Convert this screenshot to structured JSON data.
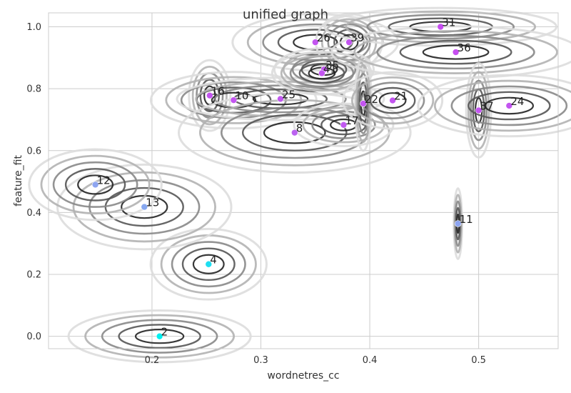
{
  "chart_data": {
    "type": "scatter",
    "title": "unified graph",
    "xlabel": "wordnetres_cc",
    "ylabel": "feature_fit",
    "xlim": [
      0.105,
      0.573
    ],
    "ylim": [
      -0.04,
      1.045
    ],
    "xticks": [
      "0.2",
      "0.3",
      "0.4",
      "0.5"
    ],
    "xtick_values": [
      0.2,
      0.3,
      0.4,
      0.5
    ],
    "yticks": [
      "0.0",
      "0.2",
      "0.4",
      "0.6",
      "0.8",
      "1.0"
    ],
    "ytick_values": [
      0.0,
      0.2,
      0.4,
      0.6,
      0.8,
      1.0
    ],
    "grid": true,
    "colormap": [
      "#00f0f0",
      "#5fb8f2",
      "#9aa0f0",
      "#b078f0",
      "#cc44f0"
    ],
    "contour_colors": [
      "#222222",
      "#555555",
      "#888888",
      "#b3b3b3",
      "#dddddd"
    ],
    "points": [
      {
        "label": "2",
        "x": 0.207,
        "y": 0.0,
        "v": 0.0,
        "sx": 0.022,
        "sy": 0.022
      },
      {
        "label": "4",
        "x": 0.252,
        "y": 0.233,
        "v": 0.08,
        "sx": 0.014,
        "sy": 0.03
      },
      {
        "label": "13",
        "x": 0.193,
        "y": 0.418,
        "v": 0.42,
        "sx": 0.021,
        "sy": 0.036
      },
      {
        "label": "12",
        "x": 0.148,
        "y": 0.49,
        "v": 0.45,
        "sx": 0.016,
        "sy": 0.03
      },
      {
        "label": "11",
        "x": 0.481,
        "y": 0.364,
        "v": 0.45,
        "sx": 0.001,
        "sy": 0.03
      },
      {
        "label": "16",
        "x": 0.253,
        "y": 0.778,
        "v": 0.92,
        "sx": 0.005,
        "sy": 0.03
      },
      {
        "label": "10",
        "x": 0.275,
        "y": 0.763,
        "v": 0.92,
        "sx": 0.02,
        "sy": 0.024
      },
      {
        "label": "25",
        "x": 0.318,
        "y": 0.767,
        "v": 0.9,
        "sx": 0.025,
        "sy": 0.018
      },
      {
        "label": "8",
        "x": 0.331,
        "y": 0.658,
        "v": 0.85,
        "sx": 0.028,
        "sy": 0.034
      },
      {
        "label": "26",
        "x": 0.35,
        "y": 0.95,
        "v": 0.92,
        "sx": 0.02,
        "sy": 0.024
      },
      {
        "label": "39",
        "x": 0.381,
        "y": 0.95,
        "v": 0.92,
        "sx": 0.008,
        "sy": 0.024
      },
      {
        "label": "35",
        "x": 0.358,
        "y": 0.862,
        "v": 0.92,
        "sx": 0.012,
        "sy": 0.018
      },
      {
        "label": "41",
        "x": 0.356,
        "y": 0.85,
        "v": 0.92,
        "sx": 0.012,
        "sy": 0.018
      },
      {
        "label": "17",
        "x": 0.376,
        "y": 0.683,
        "v": 0.9,
        "sx": 0.012,
        "sy": 0.018
      },
      {
        "label": "22",
        "x": 0.394,
        "y": 0.752,
        "v": 0.92,
        "sx": 0.002,
        "sy": 0.04
      },
      {
        "label": "21",
        "x": 0.421,
        "y": 0.762,
        "v": 0.92,
        "sx": 0.012,
        "sy": 0.024
      },
      {
        "label": "31",
        "x": 0.465,
        "y": 1.0,
        "v": 0.95,
        "sx": 0.028,
        "sy": 0.016
      },
      {
        "label": "36",
        "x": 0.479,
        "y": 0.918,
        "v": 0.95,
        "sx": 0.03,
        "sy": 0.022
      },
      {
        "label": "37",
        "x": 0.5,
        "y": 0.73,
        "v": 0.92,
        "sx": 0.003,
        "sy": 0.04
      },
      {
        "label": "24",
        "x": 0.528,
        "y": 0.745,
        "v": 0.92,
        "sx": 0.022,
        "sy": 0.026
      }
    ]
  }
}
